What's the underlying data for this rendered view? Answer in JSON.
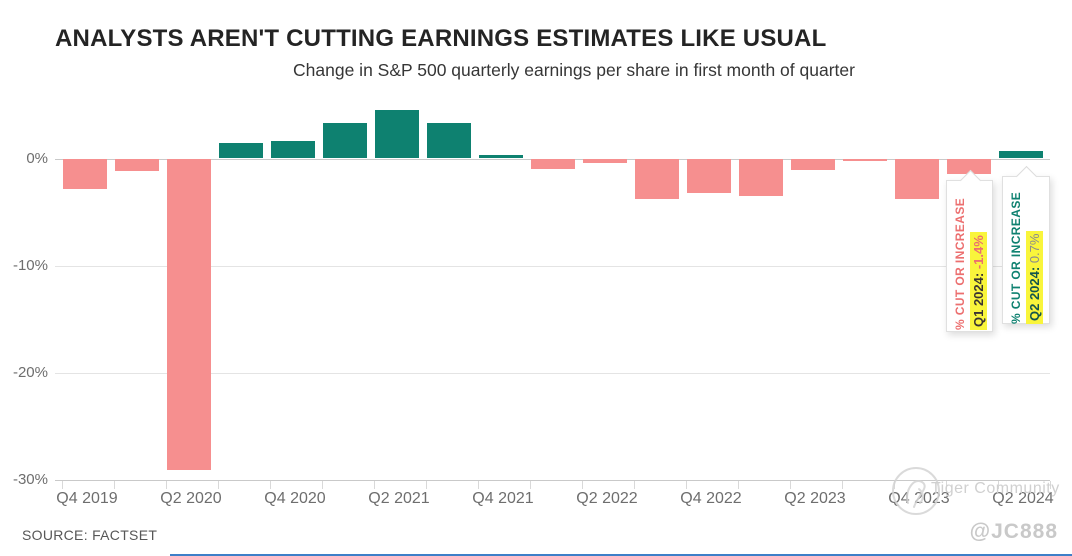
{
  "header": {
    "title": "ANALYSTS AREN'T CUTTING EARNINGS ESTIMATES LIKE USUAL",
    "subtitle": "Change in S&P 500 quarterly earnings per share in first month of quarter"
  },
  "chart_data": {
    "type": "bar",
    "title": "ANALYSTS AREN'T CUTTING EARNINGS ESTIMATES LIKE USUAL",
    "subtitle": "Change in S&P 500 quarterly earnings per share in first month of quarter",
    "categories": [
      "Q4 2019",
      "Q1 2020",
      "Q2 2020",
      "Q3 2020",
      "Q4 2020",
      "Q1 2021",
      "Q2 2021",
      "Q3 2021",
      "Q4 2021",
      "Q1 2022",
      "Q2 2022",
      "Q3 2022",
      "Q4 2022",
      "Q1 2023",
      "Q2 2023",
      "Q3 2023",
      "Q4 2023",
      "Q1 2024",
      "Q2 2024"
    ],
    "values": [
      -2.8,
      -1.2,
      -29.0,
      1.4,
      1.6,
      3.3,
      4.5,
      3.3,
      0.3,
      -1.0,
      -0.4,
      -3.8,
      -3.2,
      -3.5,
      -1.1,
      -0.2,
      -3.8,
      -1.4,
      0.7
    ],
    "x_tick_labels": [
      "Q4 2019",
      "Q2 2020",
      "Q4 2020",
      "Q2 2021",
      "Q4 2021",
      "Q2 2022",
      "Q4 2022",
      "Q2 2023",
      "Q4 2023",
      "Q2 2024"
    ],
    "y_ticks": [
      0,
      -10,
      -20,
      -30
    ],
    "y_tick_labels": [
      "0%",
      "-10%",
      "-20%",
      "-30%"
    ],
    "ylim": [
      -30,
      5
    ],
    "grid": "horizontal",
    "legend": "none",
    "colors": {
      "positive": "#0E8170",
      "negative": "#F68F8F"
    }
  },
  "annotations": [
    {
      "label": "% CUT OR INCREASE",
      "date": "Q1 2024:",
      "value": "-1.4%",
      "theme": "negative"
    },
    {
      "label": "% CUT OR INCREASE",
      "date": "Q2 2024:",
      "value": "0.7%",
      "theme": "positive"
    }
  ],
  "watermark": {
    "text": "Tiger Community"
  },
  "footer": {
    "source": "SOURCE: FACTSET",
    "handle": "@JC888"
  }
}
